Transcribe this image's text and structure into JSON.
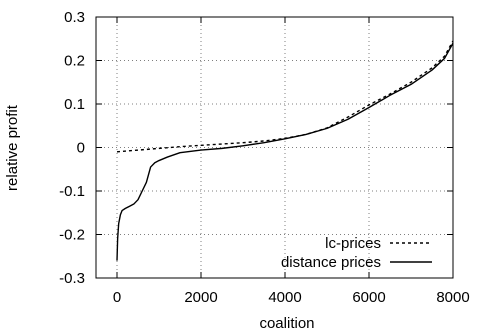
{
  "chart_data": {
    "type": "line",
    "xlabel": "coalition",
    "ylabel": "relative profit",
    "xlim": [
      -500,
      8000
    ],
    "ylim": [
      -0.3,
      0.3
    ],
    "x_ticks": [
      0,
      2000,
      4000,
      6000,
      8000
    ],
    "y_ticks": [
      -0.3,
      -0.2,
      -0.1,
      0,
      0.1,
      0.2,
      0.3
    ],
    "x_tick_labels": [
      "0",
      "2000",
      "4000",
      "6000",
      "8000"
    ],
    "y_tick_labels": [
      "-0.3",
      "-0.2",
      "-0.1",
      "0",
      "0.1",
      "0.2",
      "0.3"
    ],
    "grid": true,
    "legend_position": "bottom-right",
    "series": [
      {
        "name": "lc-prices",
        "style": "dotted",
        "color": "#000000",
        "x": [
          0,
          250,
          500,
          750,
          1000,
          1500,
          2000,
          2500,
          3000,
          3500,
          4000,
          4500,
          5000,
          5500,
          6000,
          6500,
          7000,
          7500,
          7800,
          8000
        ],
        "y": [
          -0.01,
          -0.008,
          -0.006,
          -0.004,
          -0.002,
          0.002,
          0.005,
          0.008,
          0.011,
          0.015,
          0.021,
          0.03,
          0.045,
          0.07,
          0.098,
          0.123,
          0.15,
          0.183,
          0.21,
          0.245
        ]
      },
      {
        "name": "distance prices",
        "style": "solid",
        "color": "#000000",
        "x": [
          0,
          15,
          40,
          80,
          120,
          200,
          300,
          400,
          500,
          600,
          700,
          800,
          900,
          1000,
          1200,
          1500,
          2000,
          2500,
          3000,
          3500,
          4000,
          4500,
          5000,
          5500,
          6000,
          6500,
          7000,
          7500,
          7800,
          8000
        ],
        "y": [
          -0.26,
          -0.21,
          -0.175,
          -0.155,
          -0.145,
          -0.14,
          -0.135,
          -0.13,
          -0.12,
          -0.1,
          -0.08,
          -0.045,
          -0.035,
          -0.03,
          -0.022,
          -0.012,
          -0.006,
          -0.002,
          0.004,
          0.011,
          0.02,
          0.03,
          0.044,
          0.065,
          0.092,
          0.12,
          0.145,
          0.178,
          0.205,
          0.24
        ]
      }
    ]
  }
}
